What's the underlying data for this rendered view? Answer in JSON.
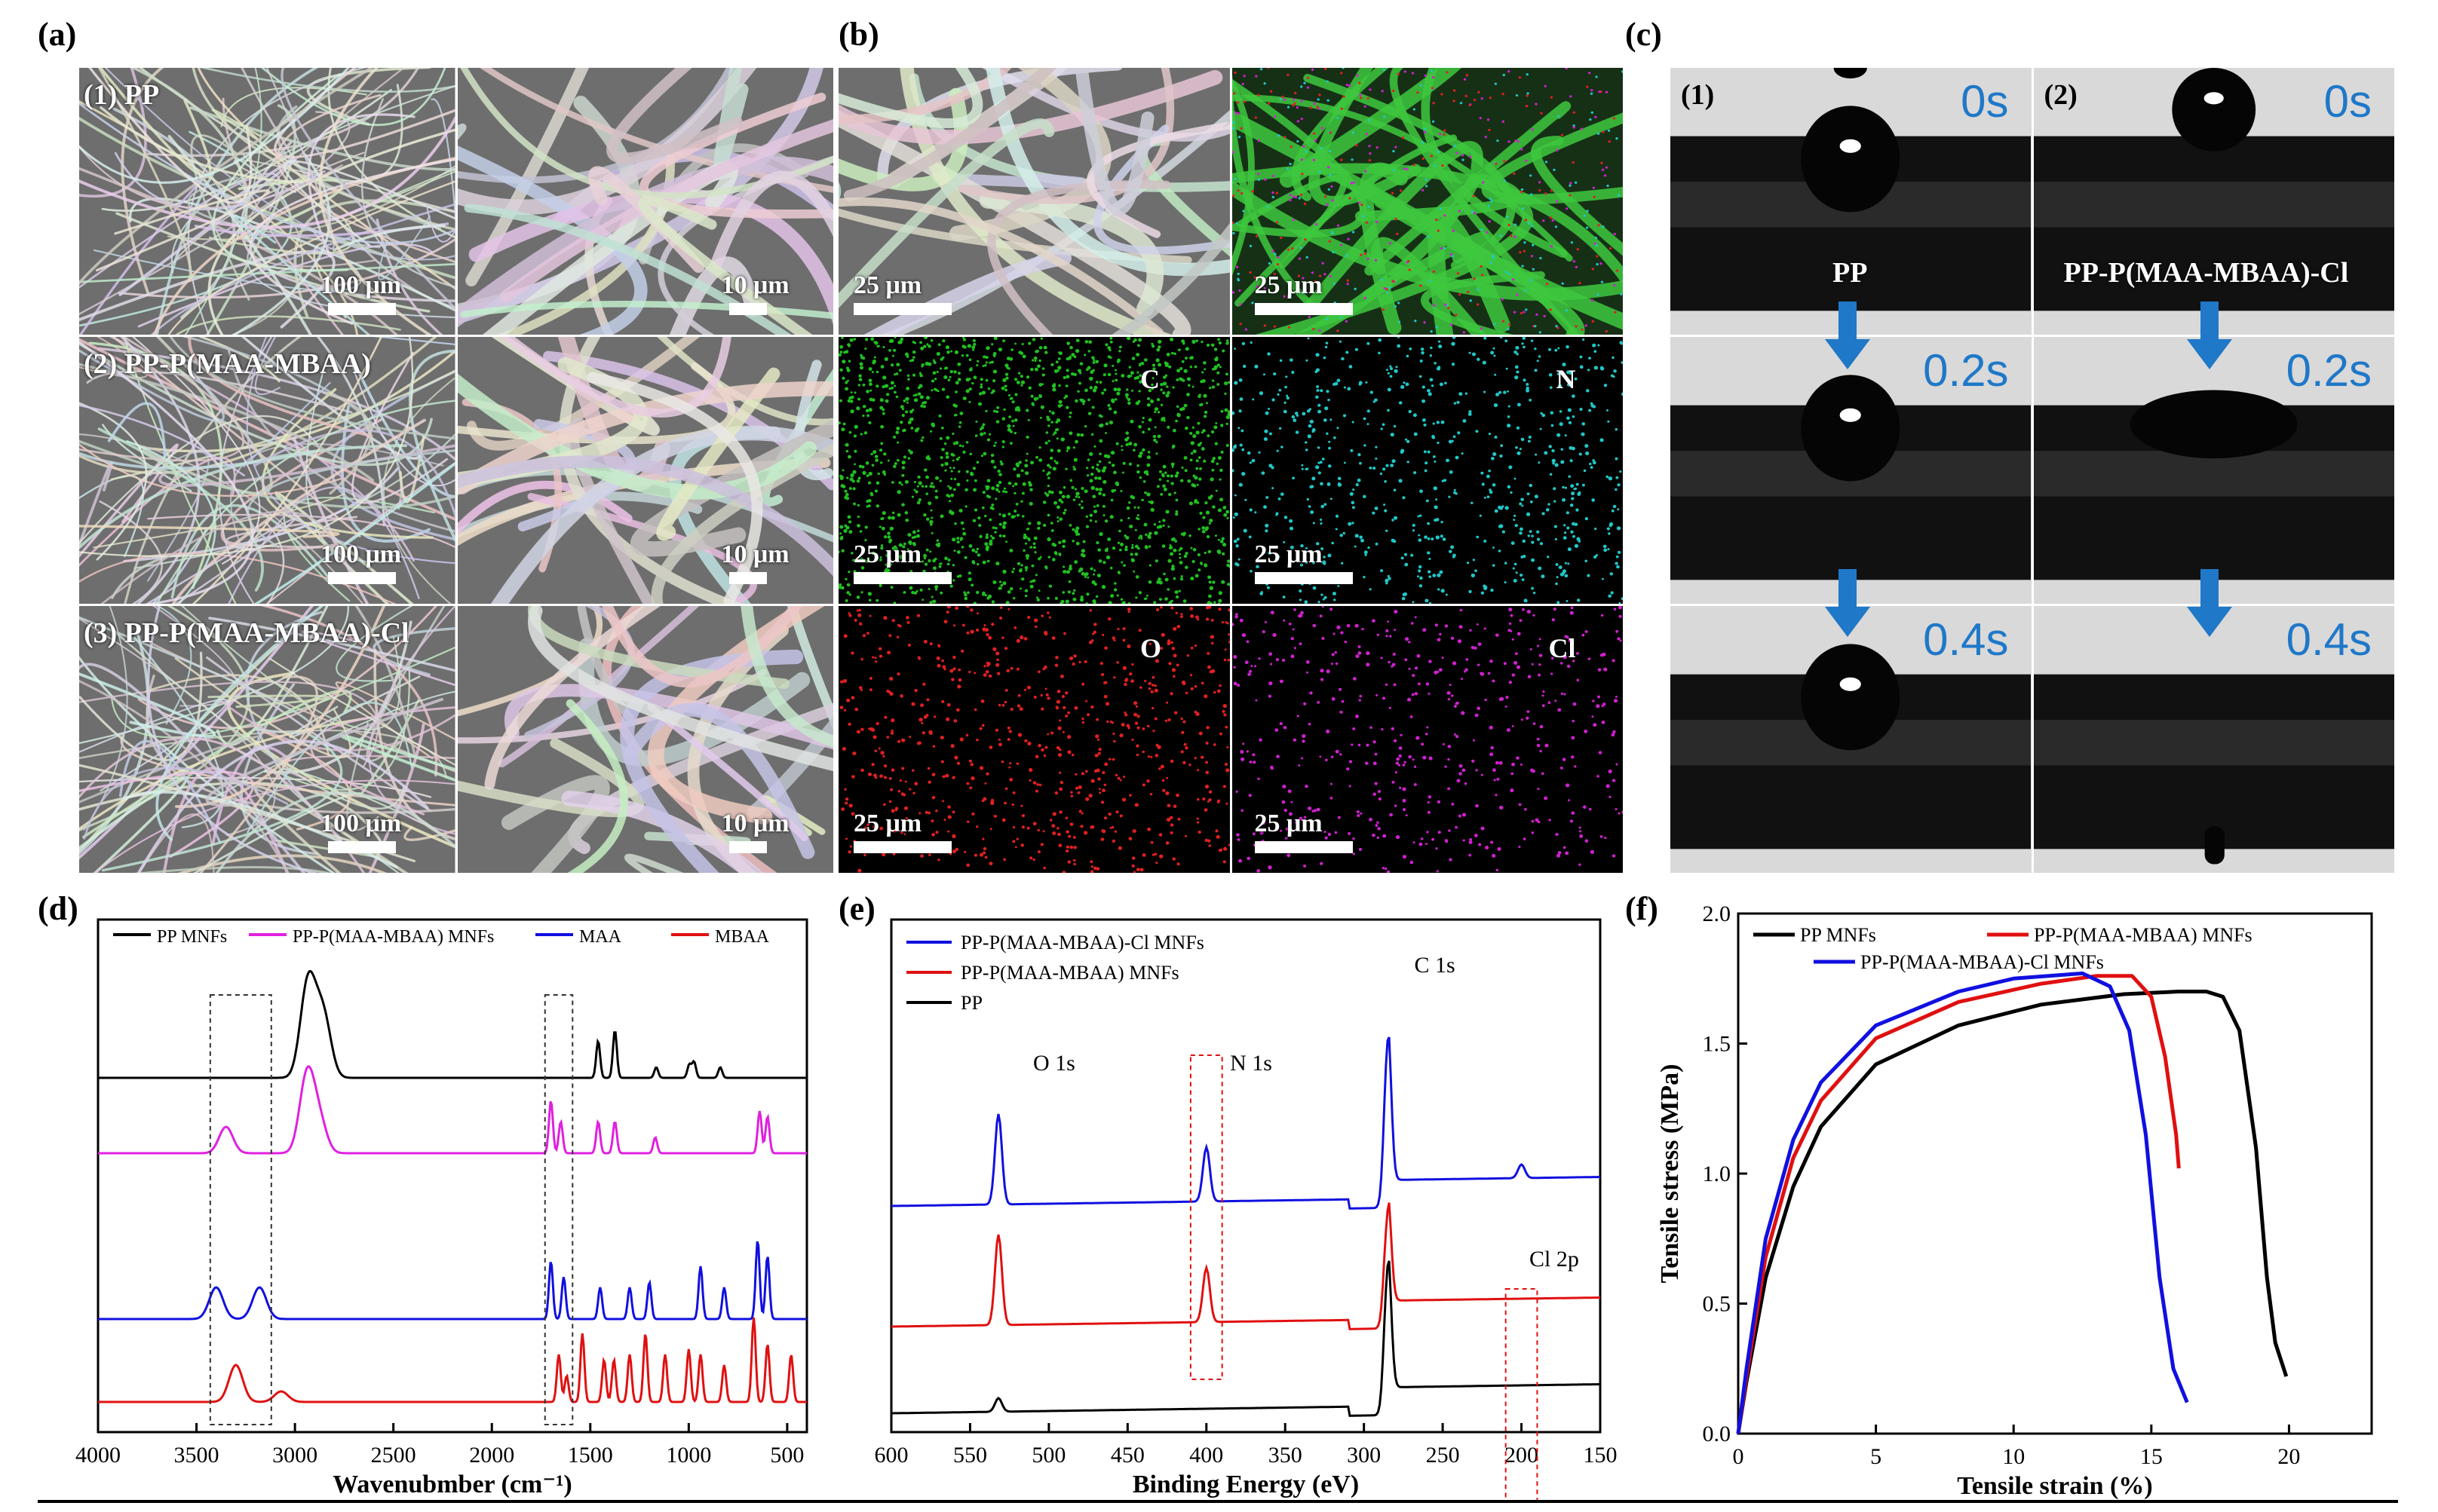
{
  "panels": {
    "a": "(a)",
    "b": "(b)",
    "c": "(c)",
    "d": "(d)",
    "e": "(e)",
    "f": "(f)"
  },
  "panel_a": {
    "rows": [
      {
        "label": "(1) PP",
        "scale_left": "100 μm",
        "scale_right": "10 μm"
      },
      {
        "label": "(2) PP-P(MAA-MBAA)",
        "scale_left": "100 μm",
        "scale_right": "10 μm"
      },
      {
        "label": "(3) PP-P(MAA-MBAA)-Cl",
        "scale_left": "100 μm",
        "scale_right": "10 μm"
      }
    ]
  },
  "panel_b": {
    "cells": [
      {
        "element": "",
        "scale": "25 μm",
        "color": "#9a9a9a"
      },
      {
        "element": "",
        "scale": "25 μm",
        "color": "#2fa02f"
      },
      {
        "element": "C",
        "scale": "25 μm",
        "color": "#20c020"
      },
      {
        "element": "N",
        "scale": "25 μm",
        "color": "#20c8c8"
      },
      {
        "element": "O",
        "scale": "25 μm",
        "color": "#e02020"
      },
      {
        "element": "Cl",
        "scale": "25 μm",
        "color": "#d020d0"
      }
    ]
  },
  "panel_c": {
    "columns": [
      {
        "index": "(1)",
        "sample": "PP",
        "times": [
          "0s",
          "0.2s",
          "0.4s"
        ]
      },
      {
        "index": "(2)",
        "sample": "PP-P(MAA-MBAA)-Cl",
        "times": [
          "0s",
          "0.2s",
          "0.4s"
        ]
      }
    ],
    "arrow_color": "#1f78c8"
  },
  "chart_data": [
    {
      "id": "d",
      "type": "line",
      "xlabel": "Wavenubmber (cm⁻¹)",
      "ylabel": "",
      "xlim": [
        4000,
        400
      ],
      "xticks": [
        4000,
        3500,
        3000,
        2500,
        2000,
        1500,
        1000,
        500
      ],
      "legend": "top",
      "series": [
        {
          "name": "PP MNFs",
          "color": "#000000",
          "offset": 3,
          "peaks": [
            [
              2950,
              0.9
            ],
            [
              2920,
              1.1
            ],
            [
              2870,
              0.7
            ],
            [
              2840,
              0.6
            ],
            [
              1460,
              0.7
            ],
            [
              1375,
              0.9
            ],
            [
              1165,
              0.2
            ],
            [
              997,
              0.25
            ],
            [
              973,
              0.3
            ],
            [
              840,
              0.2
            ]
          ]
        },
        {
          "name": "PP-P(MAA-MBAA) MNFs",
          "color": "#e020e0",
          "offset": 2,
          "peaks": [
            [
              3350,
              0.5
            ],
            [
              2950,
              0.9
            ],
            [
              2920,
              0.8
            ],
            [
              2870,
              0.5
            ],
            [
              1700,
              1.0
            ],
            [
              1650,
              0.6
            ],
            [
              1460,
              0.6
            ],
            [
              1375,
              0.6
            ],
            [
              1170,
              0.3
            ],
            [
              640,
              0.8
            ],
            [
              600,
              0.7
            ]
          ]
        },
        {
          "name": "MAA",
          "color": "#1010e0",
          "offset": 1,
          "peaks": [
            [
              3400,
              0.6
            ],
            [
              3180,
              0.6
            ],
            [
              1700,
              1.1
            ],
            [
              1635,
              0.8
            ],
            [
              1450,
              0.6
            ],
            [
              1300,
              0.6
            ],
            [
              1200,
              0.7
            ],
            [
              940,
              1.0
            ],
            [
              820,
              0.6
            ],
            [
              650,
              1.5
            ],
            [
              600,
              1.2
            ]
          ]
        },
        {
          "name": "MBAA",
          "color": "#e01010",
          "offset": 0,
          "peaks": [
            [
              3300,
              0.7
            ],
            [
              3070,
              0.2
            ],
            [
              1660,
              0.9
            ],
            [
              1620,
              0.5
            ],
            [
              1540,
              1.3
            ],
            [
              1430,
              0.8
            ],
            [
              1380,
              0.8
            ],
            [
              1300,
              0.9
            ],
            [
              1220,
              1.3
            ],
            [
              1120,
              0.9
            ],
            [
              1000,
              1.0
            ],
            [
              940,
              0.9
            ],
            [
              820,
              0.7
            ],
            [
              670,
              1.6
            ],
            [
              600,
              1.1
            ],
            [
              480,
              0.9
            ]
          ]
        }
      ],
      "boxes": [
        [
          3430,
          3120
        ],
        [
          1730,
          1590
        ]
      ]
    },
    {
      "id": "e",
      "type": "line",
      "xlabel": "Binding Energy (eV)",
      "ylabel": "",
      "xlim": [
        600,
        150
      ],
      "xticks": [
        600,
        550,
        500,
        450,
        400,
        350,
        300,
        250,
        200,
        150
      ],
      "legend": "top-left",
      "series": [
        {
          "name": "PP-P(MAA-MBAA)-Cl MNFs",
          "color": "#1010e0",
          "offset": 2,
          "peaks": [
            [
              532,
              2.0
            ],
            [
              400,
              1.2
            ],
            [
              285,
              3.5
            ],
            [
              200,
              0.3
            ]
          ]
        },
        {
          "name": "PP-P(MAA-MBAA) MNFs",
          "color": "#e01010",
          "offset": 1,
          "peaks": [
            [
              532,
              2.0
            ],
            [
              400,
              1.2
            ],
            [
              285,
              2.4
            ]
          ]
        },
        {
          "name": "PP",
          "color": "#000000",
          "offset": 0,
          "peaks": [
            [
              532,
              0.3
            ],
            [
              285,
              3.1
            ]
          ]
        }
      ],
      "annotations": [
        "O 1s",
        "N 1s",
        "C 1s",
        "Cl 2p"
      ],
      "boxes": [
        [
          410,
          390
        ],
        [
          210,
          190
        ]
      ]
    },
    {
      "id": "f",
      "type": "line",
      "xlabel": "Tensile strain (%)",
      "ylabel": "Tensile stress (MPa)",
      "xlim": [
        0,
        23
      ],
      "ylim": [
        0,
        2.0
      ],
      "xticks": [
        0,
        5,
        10,
        15,
        20
      ],
      "yticks": [
        0.0,
        0.5,
        1.0,
        1.5,
        2.0
      ],
      "legend": "top",
      "series": [
        {
          "name": "PP MNFs",
          "color": "#000000",
          "x": [
            0,
            0.3,
            1,
            2,
            3,
            5,
            8,
            11,
            14,
            16,
            17,
            17.6,
            18.2,
            18.8,
            19.2,
            19.5,
            19.9
          ],
          "y": [
            0,
            0.2,
            0.6,
            0.95,
            1.18,
            1.42,
            1.57,
            1.65,
            1.69,
            1.7,
            1.7,
            1.68,
            1.55,
            1.1,
            0.6,
            0.35,
            0.22
          ]
        },
        {
          "name": "PP-P(MAA-MBAA) MNFs",
          "color": "#e01010",
          "x": [
            0,
            0.3,
            1,
            2,
            3,
            5,
            8,
            11,
            13,
            14.3,
            15,
            15.5,
            15.9,
            16
          ],
          "y": [
            0,
            0.22,
            0.68,
            1.06,
            1.28,
            1.52,
            1.66,
            1.73,
            1.76,
            1.76,
            1.68,
            1.45,
            1.15,
            1.02
          ]
        },
        {
          "name": "PP-P(MAA-MBAA)-Cl MNFs",
          "color": "#1010e0",
          "x": [
            0,
            0.3,
            1,
            2,
            3,
            5,
            8,
            10,
            12.5,
            13.5,
            14.2,
            14.8,
            15.3,
            15.8,
            16.3
          ],
          "y": [
            0,
            0.25,
            0.75,
            1.13,
            1.35,
            1.57,
            1.7,
            1.75,
            1.77,
            1.72,
            1.55,
            1.15,
            0.6,
            0.25,
            0.12
          ]
        }
      ]
    }
  ]
}
